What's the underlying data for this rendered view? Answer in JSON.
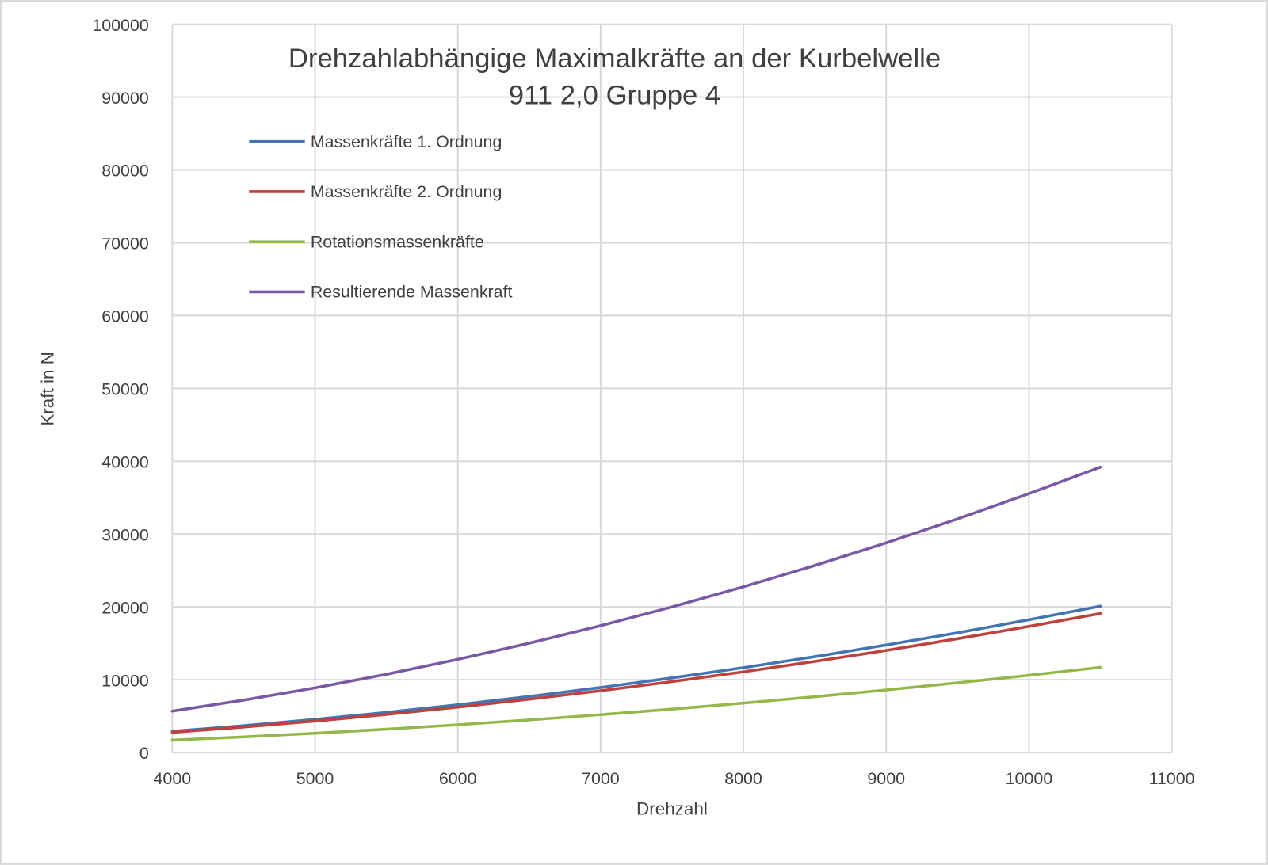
{
  "chart_data": {
    "type": "line",
    "title": [
      "Drehzahlabhängige Maximalkräfte an der Kurbelwelle",
      "911 2,0 Gruppe 4"
    ],
    "xlabel": "Drehzahl",
    "ylabel": "Kraft in N",
    "xlim": [
      4000,
      11000
    ],
    "ylim": [
      0,
      100000
    ],
    "xticks": [
      4000,
      5000,
      6000,
      7000,
      8000,
      9000,
      10000,
      11000
    ],
    "yticks": [
      0,
      10000,
      20000,
      30000,
      40000,
      50000,
      60000,
      70000,
      80000,
      90000,
      100000
    ],
    "grid": true,
    "legend_position": "top-left",
    "x": [
      4000,
      4500,
      5000,
      5500,
      6000,
      6500,
      7000,
      7500,
      8000,
      8500,
      9000,
      9500,
      10000,
      10500
    ],
    "series": [
      {
        "name": "Massenkräfte 1. Ordnung",
        "color": "#4374b3",
        "values": [
          2920,
          3690,
          4560,
          5520,
          6560,
          7700,
          8930,
          10260,
          11670,
          13170,
          14770,
          16450,
          18230,
          20100
        ]
      },
      {
        "name": "Massenkräfte 2. Ordnung",
        "color": "#bf413c",
        "values": [
          2770,
          3510,
          4330,
          5240,
          6240,
          7320,
          8490,
          9750,
          11090,
          12520,
          14030,
          15640,
          17320,
          19100
        ]
      },
      {
        "name": "Rotationsmassenkräfte",
        "color": "#94b84a",
        "values": [
          1700,
          2150,
          2650,
          3210,
          3820,
          4480,
          5200,
          5970,
          6790,
          7670,
          8600,
          9580,
          10610,
          11700
        ]
      },
      {
        "name": "Resultierende Massenkraft",
        "color": "#7a58a3",
        "values": [
          5690,
          7200,
          8890,
          10760,
          12800,
          15020,
          17420,
          20000,
          22760,
          25690,
          28800,
          32090,
          35560,
          39200
        ]
      }
    ]
  }
}
